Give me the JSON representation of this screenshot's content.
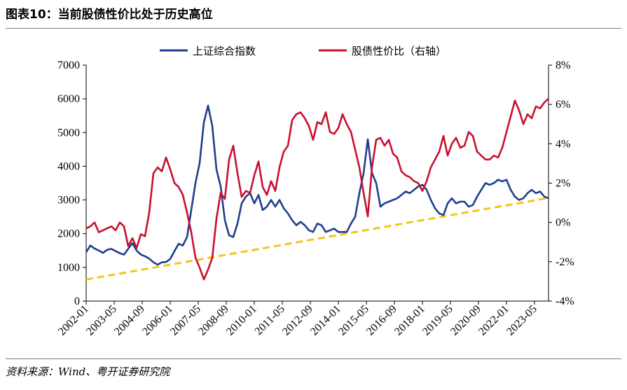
{
  "title": "图表10：当前股债性价比处于历史高位",
  "source": "资料来源：Wind、粤开证券研究院",
  "colors": {
    "sse": "#1f3f8f",
    "ratio": "#c8102e",
    "trend": "#f5c518"
  },
  "chart_data": {
    "type": "line",
    "left_axis": {
      "ylim": [
        0,
        7000
      ],
      "ticks": [
        "0",
        "1000",
        "2000",
        "3000",
        "4000",
        "5000",
        "6000",
        "7000"
      ]
    },
    "right_axis": {
      "ylim": [
        -4,
        8
      ],
      "ticks": [
        "-4%",
        "-2%",
        "0%",
        "2%",
        "4%",
        "6%",
        "8%"
      ]
    },
    "x_ticks": [
      "2002-01",
      "2003-05",
      "2004-09",
      "2006-01",
      "2007-05",
      "2008-09",
      "2010-01",
      "2011-05",
      "2012-09",
      "2014-01",
      "2015-05",
      "2016-09",
      "2018-01",
      "2019-05",
      "2020-09",
      "2022-01",
      "2023-05"
    ],
    "xlim": [
      2002.0,
      2024.0
    ],
    "series": [
      {
        "name": "上证综合指数",
        "axis": "left",
        "x": [
          2002.0,
          2002.2,
          2002.4,
          2002.6,
          2002.8,
          2003.0,
          2003.2,
          2003.4,
          2003.6,
          2003.8,
          2004.0,
          2004.2,
          2004.4,
          2004.6,
          2004.8,
          2005.0,
          2005.2,
          2005.4,
          2005.6,
          2005.8,
          2006.0,
          2006.2,
          2006.4,
          2006.6,
          2006.8,
          2007.0,
          2007.2,
          2007.4,
          2007.6,
          2007.8,
          2008.0,
          2008.2,
          2008.4,
          2008.6,
          2008.8,
          2009.0,
          2009.2,
          2009.4,
          2009.6,
          2009.8,
          2010.0,
          2010.2,
          2010.4,
          2010.6,
          2010.8,
          2011.0,
          2011.2,
          2011.4,
          2011.6,
          2011.8,
          2012.0,
          2012.2,
          2012.4,
          2012.6,
          2012.8,
          2013.0,
          2013.2,
          2013.4,
          2013.6,
          2013.8,
          2014.0,
          2014.2,
          2014.4,
          2014.6,
          2014.8,
          2015.0,
          2015.2,
          2015.4,
          2015.6,
          2015.8,
          2016.0,
          2016.2,
          2016.4,
          2016.6,
          2016.8,
          2017.0,
          2017.2,
          2017.4,
          2017.6,
          2017.8,
          2018.0,
          2018.2,
          2018.4,
          2018.6,
          2018.8,
          2019.0,
          2019.2,
          2019.4,
          2019.6,
          2019.8,
          2020.0,
          2020.2,
          2020.4,
          2020.6,
          2020.8,
          2021.0,
          2021.2,
          2021.4,
          2021.6,
          2021.8,
          2022.0,
          2022.2,
          2022.4,
          2022.6,
          2022.8,
          2023.0,
          2023.2,
          2023.4,
          2023.6,
          2023.8,
          2024.0
        ],
        "values": [
          1450,
          1650,
          1560,
          1500,
          1430,
          1520,
          1550,
          1480,
          1420,
          1380,
          1550,
          1720,
          1500,
          1380,
          1330,
          1260,
          1150,
          1080,
          1150,
          1160,
          1250,
          1480,
          1700,
          1650,
          1900,
          2700,
          3500,
          4100,
          5300,
          5800,
          5200,
          3900,
          3400,
          2400,
          1950,
          1900,
          2300,
          2900,
          3100,
          3200,
          2900,
          3150,
          2700,
          2800,
          3000,
          2800,
          3000,
          2750,
          2600,
          2400,
          2250,
          2350,
          2250,
          2100,
          2050,
          2300,
          2250,
          2050,
          2100,
          2150,
          2050,
          2050,
          2050,
          2300,
          2500,
          3200,
          3800,
          4800,
          3800,
          3500,
          2800,
          2900,
          2950,
          3000,
          3050,
          3150,
          3250,
          3200,
          3300,
          3400,
          3450,
          3300,
          3000,
          2750,
          2600,
          2550,
          2900,
          3050,
          2900,
          2950,
          2950,
          2800,
          2850,
          3100,
          3300,
          3500,
          3450,
          3500,
          3600,
          3550,
          3600,
          3300,
          3100,
          3000,
          3050,
          3200,
          3300,
          3200,
          3250,
          3100,
          3050
        ]
      },
      {
        "name": "股债性价比（右轴）",
        "axis": "right",
        "x": [
          2002.0,
          2002.2,
          2002.4,
          2002.6,
          2002.8,
          2003.0,
          2003.2,
          2003.4,
          2003.6,
          2003.8,
          2004.0,
          2004.2,
          2004.4,
          2004.6,
          2004.8,
          2005.0,
          2005.2,
          2005.4,
          2005.6,
          2005.8,
          2006.0,
          2006.2,
          2006.4,
          2006.6,
          2006.8,
          2007.0,
          2007.2,
          2007.4,
          2007.6,
          2007.8,
          2008.0,
          2008.2,
          2008.4,
          2008.6,
          2008.8,
          2009.0,
          2009.2,
          2009.4,
          2009.6,
          2009.8,
          2010.0,
          2010.2,
          2010.4,
          2010.6,
          2010.8,
          2011.0,
          2011.2,
          2011.4,
          2011.6,
          2011.8,
          2012.0,
          2012.2,
          2012.4,
          2012.6,
          2012.8,
          2013.0,
          2013.2,
          2013.4,
          2013.6,
          2013.8,
          2014.0,
          2014.2,
          2014.4,
          2014.6,
          2014.8,
          2015.0,
          2015.2,
          2015.4,
          2015.6,
          2015.8,
          2016.0,
          2016.2,
          2016.4,
          2016.6,
          2016.8,
          2017.0,
          2017.2,
          2017.4,
          2017.6,
          2017.8,
          2018.0,
          2018.2,
          2018.4,
          2018.6,
          2018.8,
          2019.0,
          2019.2,
          2019.4,
          2019.6,
          2019.8,
          2020.0,
          2020.2,
          2020.4,
          2020.6,
          2020.8,
          2021.0,
          2021.2,
          2021.4,
          2021.6,
          2021.8,
          2022.0,
          2022.2,
          2022.4,
          2022.6,
          2022.8,
          2023.0,
          2023.2,
          2023.4,
          2023.6,
          2023.8,
          2024.0
        ],
        "values": [
          -0.3,
          -0.2,
          0.0,
          -0.5,
          -0.4,
          -0.3,
          -0.2,
          -0.4,
          0.0,
          -0.2,
          -1.2,
          -0.8,
          -1.3,
          -0.6,
          -0.7,
          0.5,
          2.5,
          2.8,
          2.6,
          3.3,
          2.7,
          2.0,
          1.8,
          1.4,
          0.5,
          -0.5,
          -1.8,
          -2.3,
          -2.9,
          -2.4,
          -1.8,
          0.2,
          1.5,
          1.2,
          3.2,
          3.9,
          2.5,
          1.3,
          1.6,
          1.5,
          2.4,
          3.1,
          1.8,
          1.4,
          2.1,
          1.6,
          2.8,
          3.6,
          3.9,
          5.2,
          5.5,
          5.6,
          5.3,
          4.9,
          4.2,
          5.1,
          5.0,
          5.6,
          4.6,
          4.5,
          4.8,
          5.5,
          5.0,
          4.6,
          3.7,
          2.8,
          1.5,
          0.3,
          2.8,
          4.2,
          4.3,
          3.9,
          4.2,
          3.5,
          3.3,
          2.6,
          2.4,
          2.3,
          2.1,
          2.0,
          1.6,
          2.1,
          2.8,
          3.2,
          3.6,
          4.4,
          3.4,
          4.0,
          4.3,
          3.8,
          3.9,
          4.6,
          4.4,
          3.6,
          3.4,
          3.2,
          3.2,
          3.4,
          3.3,
          3.8,
          4.6,
          5.4,
          6.2,
          5.7,
          5.0,
          5.5,
          5.3,
          5.9,
          5.8,
          6.1,
          6.3
        ]
      }
    ],
    "trend_line": {
      "axis": "left",
      "start": [
        2002.0,
        640
      ],
      "end": [
        2024.0,
        3060
      ]
    }
  }
}
